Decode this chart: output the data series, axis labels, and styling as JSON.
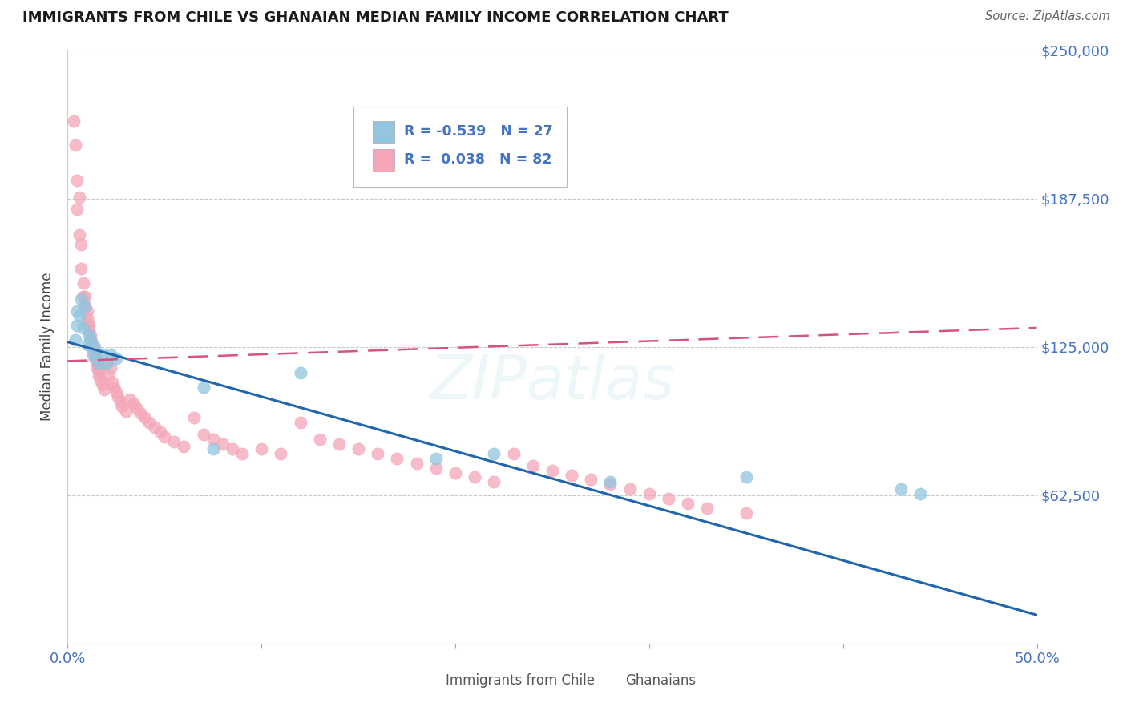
{
  "title": "IMMIGRANTS FROM CHILE VS GHANAIAN MEDIAN FAMILY INCOME CORRELATION CHART",
  "source": "Source: ZipAtlas.com",
  "ylabel": "Median Family Income",
  "xlim": [
    0,
    0.5
  ],
  "ylim": [
    0,
    250000
  ],
  "yticks": [
    0,
    62500,
    125000,
    187500,
    250000
  ],
  "xticks": [
    0.0,
    0.1,
    0.2,
    0.3,
    0.4,
    0.5
  ],
  "xtick_labels": [
    "0.0%",
    "",
    "",
    "",
    "",
    "50.0%"
  ],
  "ytick_labels_right": [
    "",
    "$62,500",
    "$125,000",
    "$187,500",
    "$250,000"
  ],
  "blue_label": "Immigrants from Chile",
  "pink_label": "Ghanaians",
  "blue_R": -0.539,
  "blue_N": 27,
  "pink_R": 0.038,
  "pink_N": 82,
  "blue_color": "#92c5de",
  "pink_color": "#f4a6b8",
  "blue_line_color": "#2166ac",
  "pink_line_color": "#d6537a",
  "background_color": "#ffffff",
  "watermark": "ZIPatlas",
  "blue_line_y0": 127000,
  "blue_line_y1": 12000,
  "pink_line_y0": 119000,
  "pink_line_y1": 133000,
  "blue_x": [
    0.004,
    0.005,
    0.005,
    0.006,
    0.007,
    0.008,
    0.009,
    0.01,
    0.011,
    0.012,
    0.013,
    0.014,
    0.015,
    0.016,
    0.018,
    0.02,
    0.022,
    0.025,
    0.07,
    0.075,
    0.12,
    0.19,
    0.22,
    0.28,
    0.35,
    0.43,
    0.44
  ],
  "blue_y": [
    128000,
    134000,
    140000,
    138000,
    145000,
    133000,
    142000,
    126000,
    130000,
    128000,
    122000,
    125000,
    120000,
    118000,
    122000,
    118000,
    122000,
    120000,
    108000,
    82000,
    114000,
    78000,
    80000,
    68000,
    70000,
    65000,
    63000
  ],
  "pink_x": [
    0.003,
    0.004,
    0.005,
    0.005,
    0.006,
    0.006,
    0.007,
    0.007,
    0.008,
    0.008,
    0.009,
    0.009,
    0.01,
    0.01,
    0.01,
    0.011,
    0.011,
    0.012,
    0.012,
    0.013,
    0.013,
    0.014,
    0.014,
    0.015,
    0.015,
    0.016,
    0.016,
    0.017,
    0.018,
    0.019,
    0.02,
    0.021,
    0.022,
    0.023,
    0.024,
    0.025,
    0.026,
    0.027,
    0.028,
    0.03,
    0.032,
    0.034,
    0.036,
    0.038,
    0.04,
    0.042,
    0.045,
    0.048,
    0.05,
    0.055,
    0.06,
    0.065,
    0.07,
    0.075,
    0.08,
    0.085,
    0.09,
    0.1,
    0.11,
    0.12,
    0.13,
    0.14,
    0.15,
    0.16,
    0.17,
    0.18,
    0.19,
    0.2,
    0.21,
    0.22,
    0.23,
    0.24,
    0.25,
    0.26,
    0.27,
    0.28,
    0.29,
    0.3,
    0.31,
    0.32,
    0.33,
    0.35
  ],
  "pink_y": [
    220000,
    210000,
    195000,
    183000,
    188000,
    172000,
    168000,
    158000,
    152000,
    146000,
    146000,
    142000,
    140000,
    137000,
    135000,
    134000,
    132000,
    130000,
    128000,
    126000,
    124000,
    122000,
    120000,
    118000,
    116000,
    115000,
    113000,
    111000,
    109000,
    107000,
    118000,
    113000,
    116000,
    110000,
    108000,
    106000,
    104000,
    102000,
    100000,
    98000,
    103000,
    101000,
    99000,
    97000,
    95000,
    93000,
    91000,
    89000,
    87000,
    85000,
    83000,
    95000,
    88000,
    86000,
    84000,
    82000,
    80000,
    82000,
    80000,
    93000,
    86000,
    84000,
    82000,
    80000,
    78000,
    76000,
    74000,
    72000,
    70000,
    68000,
    80000,
    75000,
    73000,
    71000,
    69000,
    67000,
    65000,
    63000,
    61000,
    59000,
    57000,
    55000
  ]
}
